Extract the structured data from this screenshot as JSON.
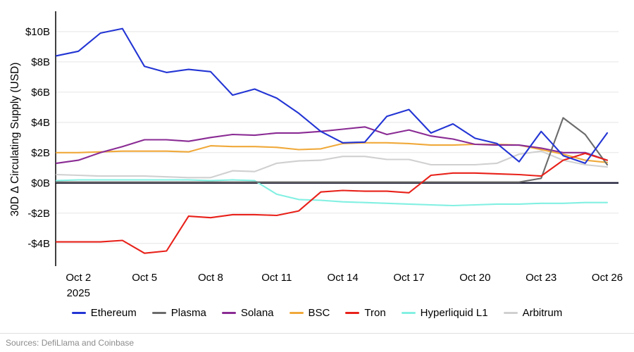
{
  "footer": {
    "sources": "Sources: DefiLlama and Coinbase"
  },
  "chart_data": {
    "type": "line",
    "title": "",
    "xlabel": "",
    "ylabel": "30D Δ Circulating Supply (USD)",
    "ylim": [
      -5.5,
      11.25
    ],
    "grid": "horizontal",
    "legend_position": "bottom",
    "grid_color": "#e5e5e5",
    "zero_line_color": "#22223a",
    "axis_color": "#000000",
    "year_label": "2025",
    "dates": [
      "Oct 1",
      "Oct 2",
      "Oct 3",
      "Oct 4",
      "Oct 5",
      "Oct 6",
      "Oct 7",
      "Oct 8",
      "Oct 9",
      "Oct 10",
      "Oct 11",
      "Oct 12",
      "Oct 13",
      "Oct 14",
      "Oct 15",
      "Oct 16",
      "Oct 17",
      "Oct 18",
      "Oct 19",
      "Oct 20",
      "Oct 21",
      "Oct 22",
      "Oct 23",
      "Oct 24",
      "Oct 25",
      "Oct 26"
    ],
    "y_ticks": [
      {
        "value": 10,
        "label": "$10B"
      },
      {
        "value": 8,
        "label": "$8B"
      },
      {
        "value": 6,
        "label": "$6B"
      },
      {
        "value": 4,
        "label": "$4B"
      },
      {
        "value": 2,
        "label": "$2B"
      },
      {
        "value": 0,
        "label": "$0B"
      },
      {
        "value": -2,
        "label": "-$2B"
      },
      {
        "value": -4,
        "label": "-$4B"
      }
    ],
    "x_ticks": [
      {
        "index": 1,
        "label": "Oct 2",
        "sub": "2025"
      },
      {
        "index": 4,
        "label": "Oct 5"
      },
      {
        "index": 7,
        "label": "Oct 8"
      },
      {
        "index": 10,
        "label": "Oct 11"
      },
      {
        "index": 13,
        "label": "Oct 14"
      },
      {
        "index": 16,
        "label": "Oct 17"
      },
      {
        "index": 19,
        "label": "Oct 20"
      },
      {
        "index": 22,
        "label": "Oct 23"
      },
      {
        "index": 25,
        "label": "Oct 26"
      }
    ],
    "series": [
      {
        "name": "Ethereum",
        "color": "#2335d4",
        "values": [
          8.4,
          8.7,
          9.9,
          10.2,
          7.7,
          7.3,
          7.5,
          7.35,
          5.8,
          6.2,
          5.6,
          4.6,
          3.4,
          2.65,
          2.7,
          4.4,
          4.85,
          3.3,
          3.9,
          2.95,
          2.6,
          1.4,
          3.4,
          1.8,
          1.3,
          3.3
        ]
      },
      {
        "name": "Plasma",
        "color": "#6b6b6b",
        "values": [
          0.05,
          0.05,
          0.05,
          0.05,
          0.05,
          0.05,
          0.05,
          0.05,
          0.05,
          0.05,
          0.05,
          0.05,
          0.05,
          0.05,
          0.05,
          0.05,
          0.05,
          0.05,
          0.05,
          0.05,
          0.05,
          0.05,
          0.3,
          4.3,
          3.2,
          1.2
        ]
      },
      {
        "name": "Solana",
        "color": "#8a2b94",
        "values": [
          1.3,
          1.5,
          2.0,
          2.4,
          2.85,
          2.85,
          2.75,
          3.0,
          3.2,
          3.15,
          3.3,
          3.3,
          3.4,
          3.55,
          3.7,
          3.2,
          3.5,
          3.1,
          2.9,
          2.55,
          2.5,
          2.5,
          2.3,
          2.0,
          2.0,
          1.5
        ]
      },
      {
        "name": "BSC",
        "color": "#f0a93a",
        "values": [
          2.0,
          2.0,
          2.05,
          2.1,
          2.1,
          2.1,
          2.05,
          2.45,
          2.4,
          2.4,
          2.35,
          2.2,
          2.25,
          2.6,
          2.65,
          2.65,
          2.6,
          2.5,
          2.5,
          2.55,
          2.55,
          2.5,
          2.2,
          1.9,
          1.5,
          1.35
        ]
      },
      {
        "name": "Tron",
        "color": "#e8211a",
        "values": [
          -3.9,
          -3.9,
          -3.9,
          -3.8,
          -4.65,
          -4.5,
          -2.2,
          -2.3,
          -2.1,
          -2.1,
          -2.15,
          -1.85,
          -0.6,
          -0.5,
          -0.55,
          -0.55,
          -0.65,
          0.5,
          0.65,
          0.65,
          0.6,
          0.55,
          0.45,
          1.5,
          1.95,
          1.5
        ]
      },
      {
        "name": "Hyperliquid L1",
        "color": "#82f0e2",
        "values": [
          0.15,
          0.2,
          0.2,
          0.2,
          0.2,
          0.2,
          0.2,
          0.15,
          0.2,
          0.15,
          -0.75,
          -1.1,
          -1.15,
          -1.25,
          -1.3,
          -1.35,
          -1.4,
          -1.45,
          -1.5,
          -1.45,
          -1.4,
          -1.4,
          -1.35,
          -1.35,
          -1.3,
          -1.3
        ]
      },
      {
        "name": "Arbitrum",
        "color": "#d0d0d0",
        "values": [
          0.55,
          0.5,
          0.45,
          0.45,
          0.45,
          0.4,
          0.35,
          0.35,
          0.8,
          0.75,
          1.3,
          1.45,
          1.5,
          1.75,
          1.75,
          1.55,
          1.55,
          1.2,
          1.2,
          1.2,
          1.3,
          1.9,
          2.1,
          1.5,
          1.2,
          1.05
        ]
      }
    ]
  }
}
